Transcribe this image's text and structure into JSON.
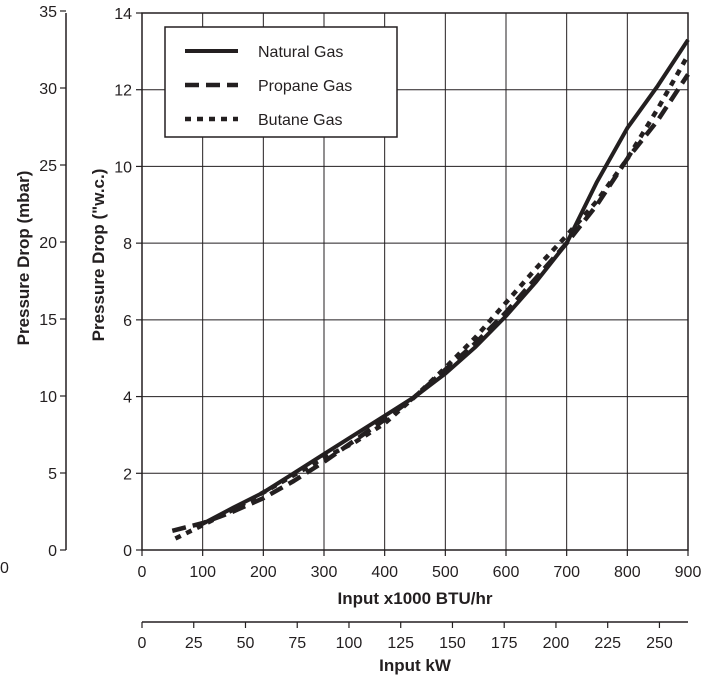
{
  "chart_data": {
    "type": "line",
    "title": "",
    "xlabel": "Input x1000 BTU/hr",
    "ylabel": "Pressure Drop (\"w.c.)",
    "x2label": "Input kW",
    "y2label": "Pressure Drop (mbar)",
    "xlim": [
      0,
      900
    ],
    "ylim": [
      0,
      14
    ],
    "x2lim": [
      0,
      263.8
    ],
    "y2lim": [
      0,
      34.87
    ],
    "grid": true,
    "legend_position": "top-left",
    "x_ticks": [
      "0",
      "100",
      "200",
      "300",
      "400",
      "500",
      "600",
      "700",
      "800",
      "900"
    ],
    "y_ticks": [
      "0",
      "2",
      "4",
      "6",
      "8",
      "10",
      "12",
      "14"
    ],
    "x2_ticks": [
      "0",
      "25",
      "50",
      "75",
      "100",
      "125",
      "150",
      "175",
      "200",
      "225",
      "250"
    ],
    "y2_ticks": [
      "0",
      "5",
      "10",
      "15",
      "20",
      "25",
      "30",
      "35"
    ],
    "y2_extra_label": "0",
    "series": [
      {
        "name": "Natural Gas",
        "style": "solid",
        "x": [
          90,
          150,
          200,
          250,
          300,
          350,
          400,
          450,
          500,
          550,
          600,
          650,
          700,
          750,
          800,
          850,
          900
        ],
        "y": [
          0.6,
          1.1,
          1.5,
          2.0,
          2.5,
          3.0,
          3.5,
          4.0,
          4.6,
          5.3,
          6.1,
          7.0,
          8.0,
          9.6,
          11.0,
          12.1,
          13.3
        ]
      },
      {
        "name": "Propane Gas",
        "style": "dashed",
        "x": [
          50,
          100,
          150,
          200,
          250,
          300,
          350,
          400,
          450,
          500,
          550,
          600,
          650,
          700,
          750,
          800,
          850,
          900
        ],
        "y": [
          0.5,
          0.7,
          1.0,
          1.35,
          1.8,
          2.3,
          2.85,
          3.4,
          4.0,
          4.7,
          5.4,
          6.2,
          7.1,
          8.0,
          9.0,
          10.2,
          11.2,
          12.4
        ]
      },
      {
        "name": "Butane Gas",
        "style": "dotted",
        "x": [
          55,
          100,
          150,
          200,
          250,
          300,
          350,
          400,
          450,
          500,
          550,
          600,
          650,
          700,
          750,
          800,
          850,
          900
        ],
        "y": [
          0.3,
          0.65,
          1.05,
          1.5,
          1.95,
          2.4,
          2.8,
          3.3,
          4.0,
          4.75,
          5.55,
          6.45,
          7.35,
          8.2,
          9.1,
          10.2,
          11.5,
          12.9
        ]
      }
    ]
  }
}
